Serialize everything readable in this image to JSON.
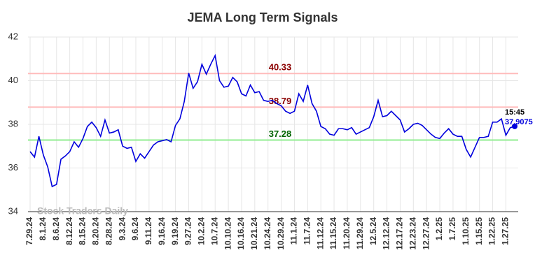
{
  "chart_data": {
    "type": "line",
    "title": "JEMA Long Term Signals",
    "categories": [
      "7.29.24",
      null,
      null,
      "8.1.24",
      null,
      null,
      "8.6.24",
      null,
      null,
      "8.12.24",
      null,
      null,
      "8.15.24",
      null,
      null,
      "8.20.24",
      null,
      null,
      "8.28.24",
      null,
      null,
      "9.3.24",
      null,
      null,
      "9.6.24",
      null,
      null,
      "9.11.24",
      null,
      null,
      "9.16.24",
      null,
      null,
      "9.19.24",
      null,
      null,
      "9.27.24",
      null,
      null,
      "10.2.24",
      null,
      null,
      "10.7.24",
      null,
      null,
      "10.10.24",
      null,
      null,
      "10.16.24",
      null,
      null,
      "10.21.24",
      null,
      null,
      "10.24.24",
      null,
      null,
      "10.29.24",
      null,
      null,
      "11.1.24",
      null,
      null,
      "11.7.24",
      null,
      null,
      "11.12.24",
      null,
      null,
      "11.15.24",
      null,
      null,
      "11.20.24",
      null,
      null,
      "11.29.24",
      null,
      null,
      "12.5.24",
      null,
      null,
      "12.12.24",
      null,
      null,
      "12.17.24",
      null,
      null,
      "12.23.24",
      null,
      null,
      "12.27.24",
      null,
      null,
      "1.2.25",
      null,
      null,
      "1.7.25",
      null,
      null,
      "1.10.25",
      null,
      null,
      "1.15.25",
      null,
      null,
      "1.22.25",
      null,
      null,
      "1.27.25",
      null,
      null
    ],
    "values": [
      36.75,
      36.5,
      37.45,
      36.6,
      36.05,
      35.15,
      35.25,
      36.4,
      36.55,
      36.75,
      37.2,
      36.95,
      37.35,
      37.9,
      38.1,
      37.85,
      37.45,
      38.2,
      37.6,
      37.65,
      37.75,
      37.0,
      36.9,
      36.95,
      36.3,
      36.65,
      36.45,
      36.75,
      37.05,
      37.2,
      37.25,
      37.3,
      37.2,
      37.95,
      38.25,
      39.05,
      40.35,
      39.65,
      39.95,
      40.75,
      40.3,
      40.75,
      41.15,
      40.0,
      39.7,
      39.75,
      40.15,
      39.95,
      39.4,
      39.3,
      39.8,
      39.45,
      39.5,
      39.1,
      39.05,
      39.1,
      38.95,
      38.85,
      38.6,
      38.5,
      38.6,
      39.4,
      39.05,
      39.8,
      38.95,
      38.6,
      37.9,
      37.8,
      37.55,
      37.5,
      37.8,
      37.8,
      37.75,
      37.85,
      37.55,
      37.65,
      37.75,
      37.85,
      38.35,
      39.1,
      38.35,
      38.4,
      38.6,
      38.4,
      38.2,
      37.65,
      37.8,
      38.0,
      38.05,
      37.95,
      37.75,
      37.55,
      37.4,
      37.35,
      37.6,
      37.8,
      37.55,
      37.45,
      37.45,
      36.85,
      36.5,
      36.95,
      37.4,
      37.4,
      37.45,
      38.1,
      38.1,
      38.25,
      37.5,
      37.85,
      37.9075
    ],
    "color": "#0000dd",
    "ylim": [
      34,
      42
    ],
    "yticks": [
      34,
      36,
      38,
      40,
      42
    ],
    "grid": true,
    "reference_lines": [
      {
        "value": 40.33,
        "color": "#ffbbbb",
        "label_color": "#8b0000"
      },
      {
        "value": 38.79,
        "color": "#ffbbbb",
        "label_color": "#8b0000"
      },
      {
        "value": 37.28,
        "color": "#90ee90",
        "label_color": "#006400"
      }
    ],
    "last_time": "15:45",
    "watermark": "Stock Traders Daily"
  }
}
